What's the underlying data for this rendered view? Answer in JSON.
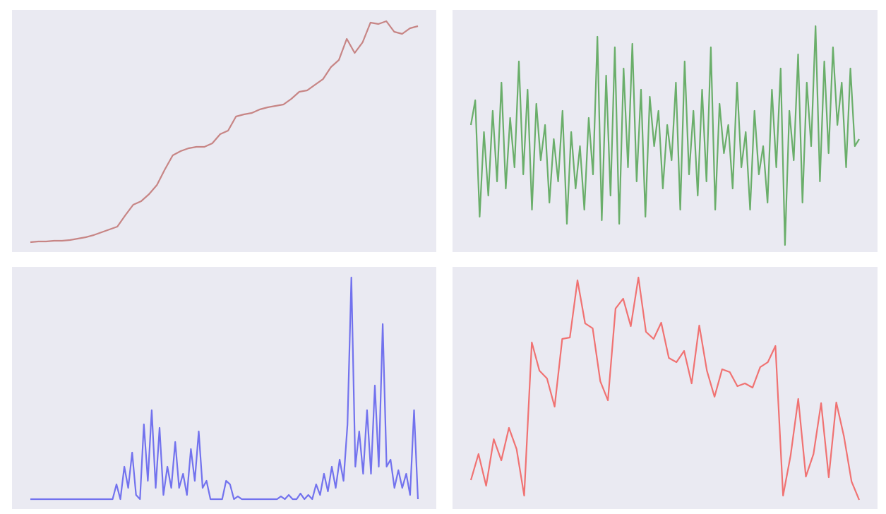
{
  "chart_data": [
    {
      "type": "line",
      "color": "#c78585",
      "ylim": [
        0,
        343
      ],
      "grid": false,
      "values": [
        14,
        15,
        15,
        16,
        16,
        17,
        19,
        21,
        24,
        28,
        32,
        36,
        52,
        67,
        72,
        82,
        95,
        117,
        137,
        143,
        147,
        149,
        149,
        154,
        167,
        172,
        192,
        195,
        197,
        202,
        205,
        207,
        209,
        217,
        227,
        229,
        237,
        245,
        262,
        272,
        302,
        282,
        297,
        325,
        323,
        327,
        312,
        309,
        317,
        320
      ]
    },
    {
      "type": "line",
      "color": "#6aae6a",
      "ylim": [
        0,
        343
      ],
      "grid": false,
      "values": [
        180,
        215,
        50,
        170,
        80,
        200,
        100,
        240,
        90,
        190,
        120,
        270,
        110,
        230,
        60,
        210,
        130,
        180,
        70,
        160,
        100,
        200,
        40,
        170,
        90,
        150,
        60,
        190,
        110,
        305,
        45,
        250,
        80,
        290,
        40,
        260,
        120,
        295,
        100,
        230,
        50,
        220,
        150,
        200,
        90,
        180,
        130,
        240,
        60,
        270,
        110,
        200,
        80,
        230,
        100,
        290,
        60,
        210,
        140,
        180,
        90,
        240,
        120,
        170,
        60,
        200,
        110,
        150,
        70,
        230,
        120,
        260,
        10,
        200,
        130,
        280,
        70,
        240,
        150,
        320,
        100,
        270,
        140,
        290,
        180,
        240,
        120,
        260,
        150,
        160
      ]
    },
    {
      "type": "line",
      "color": "#7272ee",
      "ylim": [
        0,
        343
      ],
      "grid": false,
      "values": [
        14,
        14,
        14,
        14,
        14,
        14,
        14,
        14,
        14,
        14,
        14,
        14,
        14,
        14,
        14,
        14,
        14,
        14,
        14,
        14,
        14,
        14,
        35,
        14,
        60,
        30,
        80,
        20,
        14,
        120,
        40,
        140,
        30,
        115,
        20,
        60,
        30,
        95,
        30,
        50,
        20,
        85,
        40,
        110,
        30,
        40,
        14,
        14,
        14,
        14,
        40,
        35,
        14,
        18,
        14,
        14,
        14,
        14,
        14,
        14,
        14,
        14,
        14,
        14,
        18,
        14,
        20,
        14,
        14,
        22,
        14,
        20,
        14,
        35,
        20,
        50,
        25,
        60,
        30,
        70,
        40,
        120,
        328,
        60,
        110,
        50,
        140,
        50,
        175,
        60,
        262,
        60,
        70,
        30,
        55,
        30,
        50,
        20,
        140,
        14
      ]
    },
    {
      "type": "line",
      "color": "#f07272",
      "ylim": [
        0,
        343
      ],
      "grid": false,
      "values": [
        41,
        78,
        33,
        99,
        69,
        115,
        85,
        19,
        236,
        196,
        185,
        145,
        241,
        243,
        324,
        263,
        256,
        181,
        154,
        284,
        298,
        259,
        328,
        251,
        241,
        264,
        214,
        208,
        224,
        178,
        260,
        196,
        159,
        198,
        194,
        174,
        178,
        172,
        201,
        208,
        231,
        19,
        76,
        156,
        46,
        78,
        150,
        45,
        151,
        103,
        39,
        13
      ]
    }
  ]
}
